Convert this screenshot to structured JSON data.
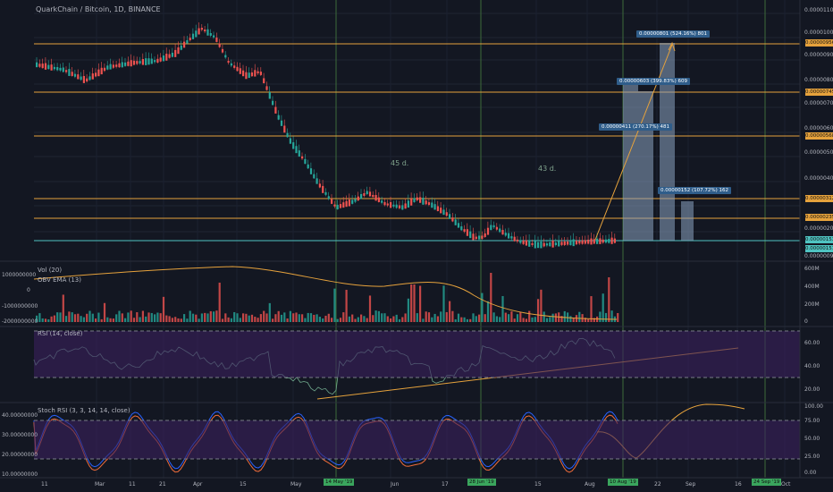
{
  "chart": {
    "title": "QuarkChain / Bitcoin, 1D, BINANCE",
    "price_axis": [
      "0.00001100",
      "0.00001000",
      "0.00000900",
      "0.00000800",
      "0.00000700",
      "0.00000600",
      "0.00000500",
      "0.00000400",
      "0.00000300",
      "0.00000200"
    ],
    "hline_levels": [
      "0.00000956",
      "0.00000745",
      "0.00000568",
      "0.00000312",
      "0.00000235"
    ],
    "current_price": "0.00000153",
    "current_price2": "0.00000151",
    "bottom_label": "0.00000090",
    "annotations": {
      "days1": "45 d.",
      "days2": "43 d."
    },
    "boxes": [
      "0.00000801 (524.16%) 801",
      "0.00000603 (399.83%) 609",
      "0.00000411 (270.17%) 481",
      "0.00000152 (107.72%) 162"
    ],
    "volume": {
      "label": "Vol (20)",
      "obv_label": "OBV EMA (13)",
      "left_axis": [
        "1000000000",
        "0",
        "-1000000000",
        "-2000000000"
      ],
      "right_axis": [
        "600M",
        "400M",
        "200M",
        "0"
      ]
    },
    "rsi": {
      "label": "RSI (14, close)",
      "right_axis": [
        "60.00",
        "40.00",
        "20.00"
      ]
    },
    "stoch": {
      "label": "Stoch RSI (3, 3, 14, 14, close)",
      "left_axis": [
        "40.00000000",
        "30.00000000",
        "20.00000000",
        "10.00000000"
      ],
      "right_axis": [
        "100.00",
        "75.00",
        "50.00",
        "25.00",
        "0.00"
      ]
    },
    "x_labels": [
      "11",
      "Mar",
      "11",
      "21",
      "Apr",
      "15",
      "May",
      "Jun",
      "17",
      "15",
      "Aug",
      "22",
      "Sep",
      "16",
      "Oct"
    ],
    "x_highlights": [
      "14 May '19",
      "28 Jun '19",
      "10 Aug '19",
      "24 Sep '19"
    ],
    "colors": {
      "up": "#26a69a",
      "down": "#ef5350",
      "level": "#e6a23c",
      "current": "#4fc3c1",
      "vline": "#3d6b3a",
      "rsi_bg": "#3b1f5e",
      "box": "#2f5d8a"
    }
  }
}
